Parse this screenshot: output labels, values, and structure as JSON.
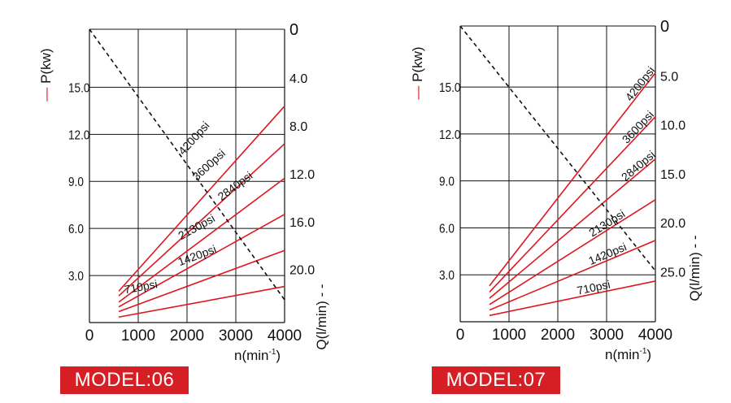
{
  "chart_data": [
    {
      "type": "line",
      "model_label": "MODEL:06",
      "x": {
        "label": "n(min",
        "label_sup": "-1",
        "label_tail": ")",
        "ticks": [
          0,
          1000,
          2000,
          3000,
          4000
        ],
        "range": [
          0,
          4000
        ]
      },
      "y_left": {
        "label": "P(kw)",
        "ticks": [
          3.0,
          6.0,
          9.0,
          12.0,
          15.0
        ],
        "tick_labels": [
          "3.0",
          "6.0",
          "9.0",
          "12.0",
          "15.0"
        ],
        "range": [
          0,
          18.7
        ]
      },
      "y_right": {
        "label": "Q(l/min)",
        "ticks": [
          0,
          4,
          8,
          12,
          16,
          20
        ],
        "tick_labels": [
          "0",
          "4.0",
          "8.0",
          "12.0",
          "16.0",
          "20.0"
        ],
        "range": [
          0,
          24.5
        ]
      },
      "series": [
        {
          "name": "4200psi",
          "axis": "P",
          "color": "#e0161f",
          "points": [
            [
              600,
              2.0
            ],
            [
              4000,
              13.8
            ]
          ]
        },
        {
          "name": "3600psi",
          "axis": "P",
          "color": "#e0161f",
          "points": [
            [
              600,
              1.7
            ],
            [
              4000,
              11.4
            ]
          ]
        },
        {
          "name": "2840psi",
          "axis": "P",
          "color": "#e0161f",
          "points": [
            [
              600,
              1.3
            ],
            [
              4000,
              9.2
            ]
          ]
        },
        {
          "name": "2130psi",
          "axis": "P",
          "color": "#e0161f",
          "points": [
            [
              600,
              1.0
            ],
            [
              4000,
              6.9
            ]
          ]
        },
        {
          "name": "1420psi",
          "axis": "P",
          "color": "#e0161f",
          "points": [
            [
              600,
              0.7
            ],
            [
              4000,
              4.6
            ]
          ]
        },
        {
          "name": "710psi",
          "axis": "P",
          "color": "#e0161f",
          "points": [
            [
              600,
              0.35
            ],
            [
              4000,
              2.3
            ]
          ]
        },
        {
          "name": "Q",
          "axis": "Q",
          "color": "#111111",
          "dashed": true,
          "points": [
            [
              0,
              0
            ],
            [
              4000,
              22.6
            ]
          ]
        }
      ]
    },
    {
      "type": "line",
      "model_label": "MODEL:07",
      "x": {
        "label": "n(min",
        "label_sup": "-1",
        "label_tail": ")",
        "ticks": [
          0,
          1000,
          2000,
          3000,
          4000
        ],
        "range": [
          0,
          4000
        ]
      },
      "y_left": {
        "label": "P(kw)",
        "ticks": [
          3.0,
          6.0,
          9.0,
          12.0,
          15.0
        ],
        "tick_labels": [
          "3.0",
          "6.0",
          "9.0",
          "12.0",
          "15.0"
        ],
        "range": [
          0,
          18.9
        ]
      },
      "y_right": {
        "label": "Q(l/min)",
        "ticks": [
          0,
          5,
          10,
          15,
          20,
          25
        ],
        "tick_labels": [
          "0",
          "5.0",
          "10.0",
          "15.0",
          "20.0",
          "25.0"
        ],
        "range": [
          0,
          30.2
        ]
      },
      "series": [
        {
          "name": "4200psi",
          "axis": "P",
          "color": "#e0161f",
          "points": [
            [
              600,
              2.3
            ],
            [
              4000,
              15.9
            ]
          ]
        },
        {
          "name": "3600psi",
          "axis": "P",
          "color": "#e0161f",
          "points": [
            [
              600,
              1.9
            ],
            [
              4000,
              13.1
            ]
          ]
        },
        {
          "name": "2840psi",
          "axis": "P",
          "color": "#e0161f",
          "points": [
            [
              600,
              1.5
            ],
            [
              4000,
              10.4
            ]
          ]
        },
        {
          "name": "2130psi",
          "axis": "P",
          "color": "#e0161f",
          "points": [
            [
              600,
              1.1
            ],
            [
              4000,
              7.8
            ]
          ]
        },
        {
          "name": "1420psi",
          "axis": "P",
          "color": "#e0161f",
          "points": [
            [
              600,
              0.75
            ],
            [
              4000,
              5.2
            ]
          ]
        },
        {
          "name": "710psi",
          "axis": "P",
          "color": "#e0161f",
          "points": [
            [
              600,
              0.4
            ],
            [
              4000,
              2.6
            ]
          ]
        },
        {
          "name": "Q",
          "axis": "Q",
          "color": "#111111",
          "dashed": true,
          "points": [
            [
              0,
              0
            ],
            [
              4000,
              25.0
            ]
          ]
        }
      ]
    }
  ],
  "colors": {
    "red": "#e0161f",
    "badge": "#d51f25",
    "grid": "#111111"
  }
}
